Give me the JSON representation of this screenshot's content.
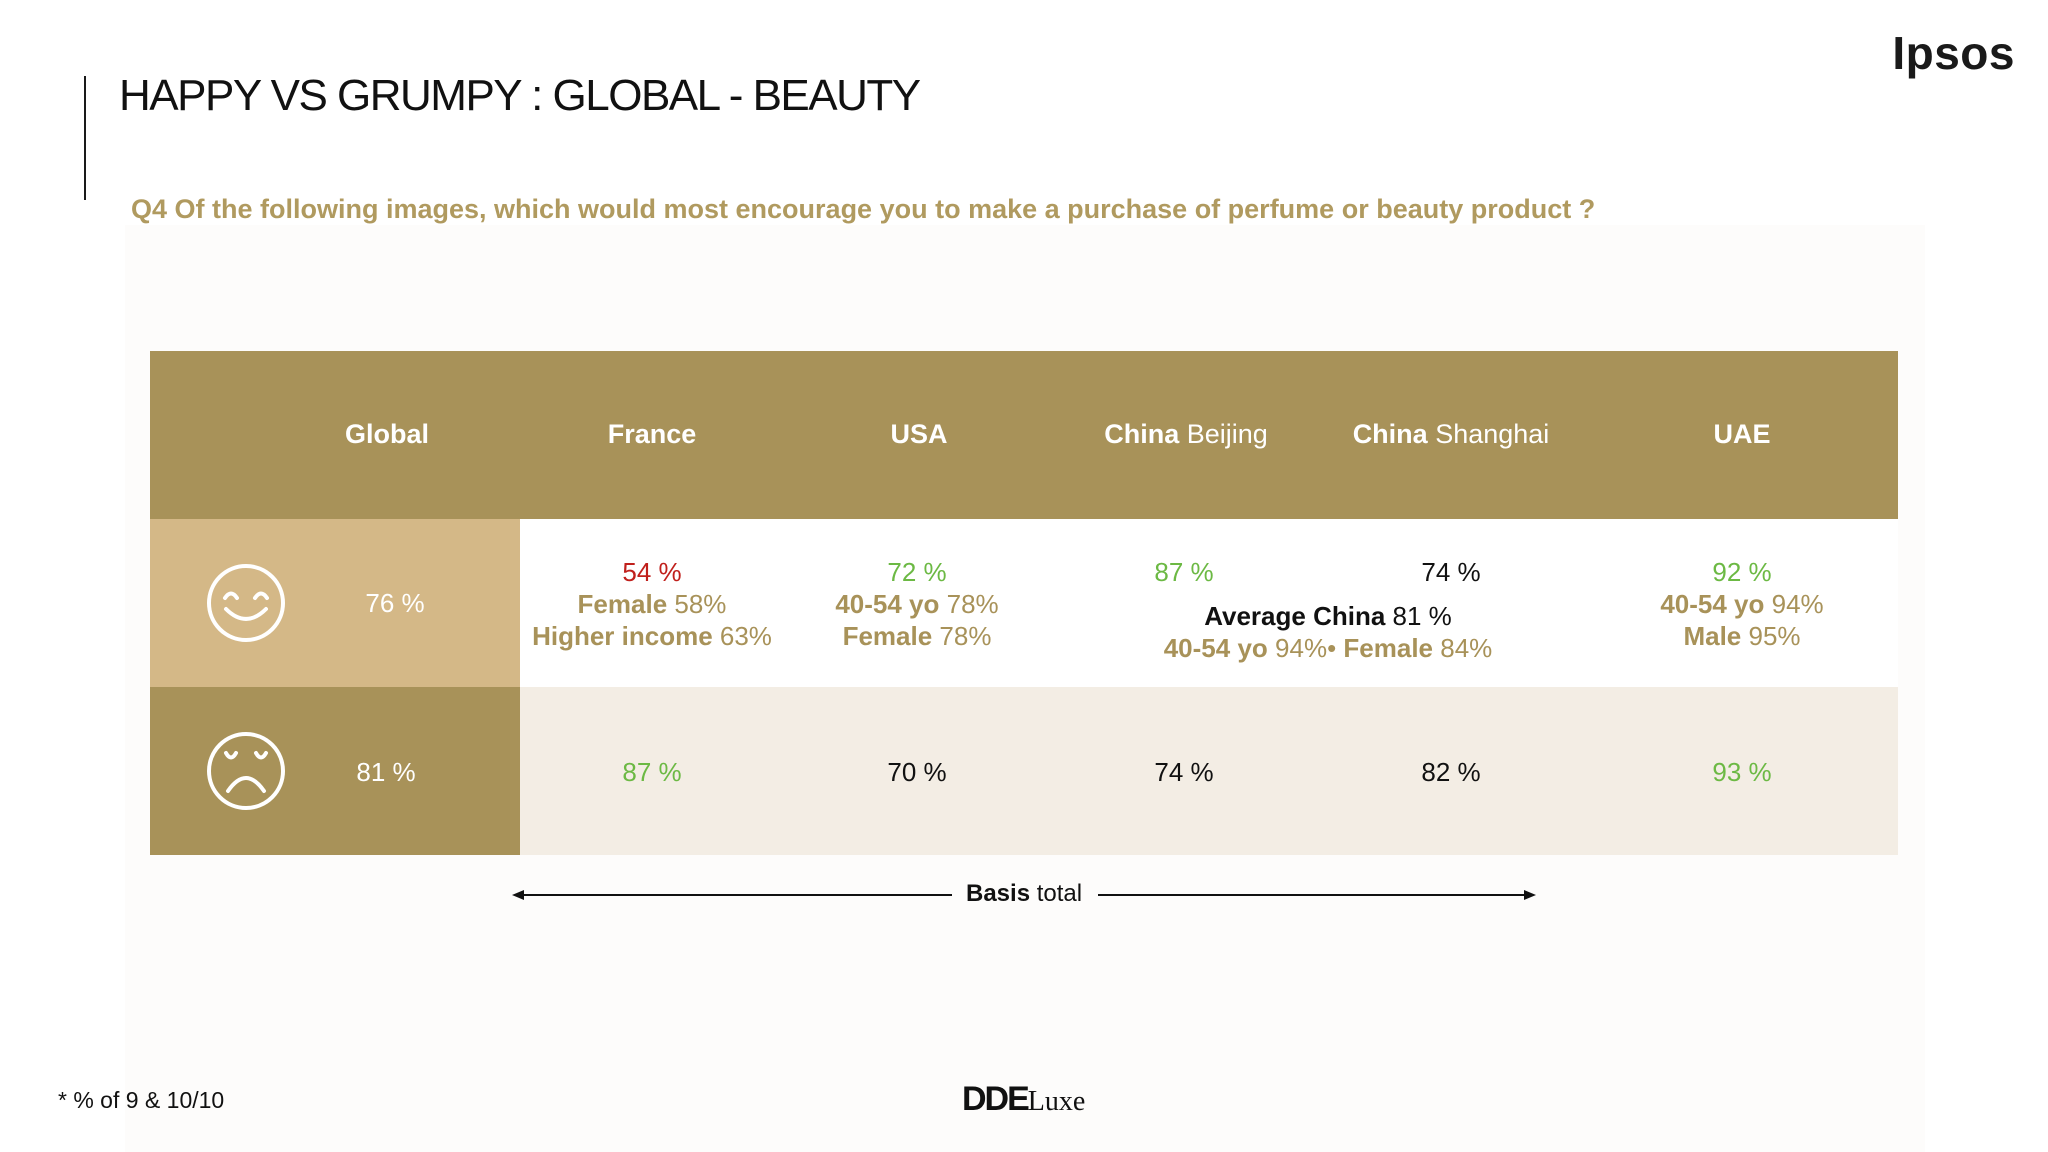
{
  "brand": "Ipsos",
  "title": "HAPPY VS GRUMPY : GLOBAL - BEAUTY",
  "question": "Q4 Of the following images, which would most encourage you to make a purchase of perfume or beauty product ?",
  "colors": {
    "header_gold": "#a89259",
    "light_gold": "#d4b887",
    "question_gold": "#b09a5f",
    "row_beige": "#f3ede4",
    "red": "#c0201c",
    "green": "#6cb944"
  },
  "columns": [
    {
      "bold": "Global",
      "light": ""
    },
    {
      "bold": "France",
      "light": ""
    },
    {
      "bold": "USA",
      "light": ""
    },
    {
      "bold": "China",
      "light": " Beijing"
    },
    {
      "bold": "China",
      "light": " Shanghai"
    },
    {
      "bold": "UAE",
      "light": ""
    }
  ],
  "rows": {
    "happy": {
      "icon": "smiley-face-icon",
      "global": "76 %",
      "france": {
        "value": "54 %",
        "line2_bold": "Female",
        "line2_value": " 58%",
        "line3_bold": "Higher income",
        "line3_value": " 63%"
      },
      "usa": {
        "value": "72 %",
        "line2_bold": "40-54 yo",
        "line2_value": " 78%",
        "line3_bold": "Female",
        "line3_value": " 78%"
      },
      "china_beijing": {
        "value": "87 %"
      },
      "china_shanghai": {
        "value": "74 %"
      },
      "china_average": {
        "label_bold": "Average China",
        "label_value": " 81 %",
        "line2_bold1": "40-54 yo",
        "line2_value1": " 94%",
        "separator": "• ",
        "line2_bold2": "Female",
        "line2_value2": " 84%"
      },
      "uae": {
        "value": "92 %",
        "line2_bold": "40-54 yo",
        "line2_value": " 94%",
        "line3_bold": "Male",
        "line3_value": " 95%"
      }
    },
    "grumpy": {
      "icon": "grumpy-face-icon",
      "global": "81 %",
      "france": "87 %",
      "usa": "70 %",
      "china_beijing": "74 %",
      "china_shanghai": "82 %",
      "uae": "93 %"
    }
  },
  "basis": {
    "bold": "Basis",
    "light": " total"
  },
  "footnote": "* % of 9 & 10/10",
  "logo": {
    "dde": "DDE",
    "luxe": "Luxe"
  }
}
